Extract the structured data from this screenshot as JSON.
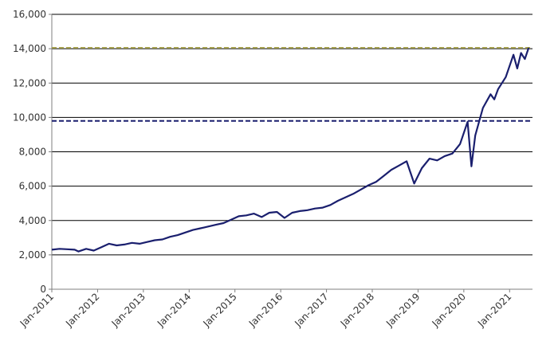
{
  "chart_data": {
    "type": "line",
    "title": "",
    "xlabel": "",
    "ylabel": "",
    "ylim": [
      0,
      16000
    ],
    "yticks": [
      "0",
      "2,000",
      "4,000",
      "6,000",
      "8,000",
      "10,000",
      "12,000",
      "14,000",
      "16,000"
    ],
    "xlim": [
      "2011-01",
      "2021-07"
    ],
    "xticks": [
      "Jan-2011",
      "Jan-2012",
      "Jan-2013",
      "Jan-2014",
      "Jan-2015",
      "Jan-2016",
      "Jan-2017",
      "Jan-2018",
      "Jan-2019",
      "Jan-2020",
      "Jan-2021"
    ],
    "grid": {
      "horizontal": true,
      "vertical": false
    },
    "colors": {
      "series": "#1a1f6e",
      "reference_high": "#a5a04f",
      "reference_mid": "#1a1f6e",
      "grid": "#000000",
      "axis": "#7f7f7f"
    },
    "series": [
      {
        "x": [
          "2011-01",
          "2011-03",
          "2011-05",
          "2011-07",
          "2011-08",
          "2011-10",
          "2011-12",
          "2012-02",
          "2012-04",
          "2012-06",
          "2012-08",
          "2012-10",
          "2012-12",
          "2013-02",
          "2013-04",
          "2013-06",
          "2013-08",
          "2013-10",
          "2013-12",
          "2014-02",
          "2014-04",
          "2014-06",
          "2014-08",
          "2014-10",
          "2014-12",
          "2015-02",
          "2015-04",
          "2015-06",
          "2015-08",
          "2015-10",
          "2015-12",
          "2016-02",
          "2016-04",
          "2016-06",
          "2016-08",
          "2016-10",
          "2016-12",
          "2017-02",
          "2017-04",
          "2017-06",
          "2017-08",
          "2017-10",
          "2017-12",
          "2018-02",
          "2018-04",
          "2018-06",
          "2018-08",
          "2018-10",
          "2018-12",
          "2019-02",
          "2019-04",
          "2019-06",
          "2019-08",
          "2019-10",
          "2019-12",
          "2020-02",
          "2020-03",
          "2020-04",
          "2020-06",
          "2020-08",
          "2020-09",
          "2020-10",
          "2020-12",
          "2021-02",
          "2021-03",
          "2021-04",
          "2021-05",
          "2021-06"
        ],
        "values": [
          2300,
          2350,
          2330,
          2300,
          2200,
          2350,
          2250,
          2450,
          2650,
          2550,
          2600,
          2700,
          2650,
          2750,
          2850,
          2900,
          3050,
          3150,
          3300,
          3450,
          3550,
          3650,
          3750,
          3850,
          4050,
          4250,
          4300,
          4400,
          4200,
          4450,
          4500,
          4150,
          4450,
          4550,
          4600,
          4700,
          4750,
          4900,
          5150,
          5350,
          5550,
          5800,
          6050,
          6250,
          6600,
          6950,
          7200,
          7450,
          6150,
          7050,
          7600,
          7500,
          7750,
          7900,
          8450,
          9750,
          7150,
          8950,
          10550,
          11350,
          11050,
          11650,
          12350,
          13650,
          12850,
          13750,
          13400,
          14050
        ]
      }
    ],
    "reference_lines": [
      {
        "y": 14050,
        "style": "dashed"
      },
      {
        "y": 9800,
        "style": "dashed"
      }
    ]
  }
}
